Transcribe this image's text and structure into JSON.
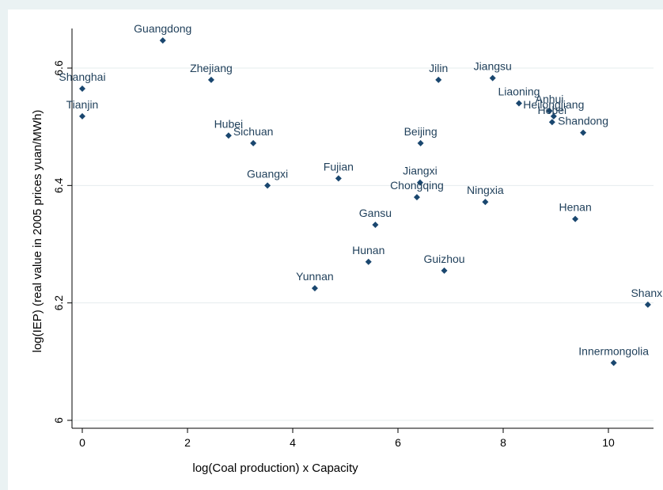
{
  "chart_data": {
    "type": "scatter",
    "title": "",
    "xlabel": "log(Coal production) x Capacity",
    "ylabel": "log(IEP) (real value in 2005 prices yuan/MWh)",
    "xlim": [
      -0.2,
      10.9
    ],
    "ylim": [
      5.98,
      6.67
    ],
    "xticks": [
      0,
      2,
      4,
      6,
      8,
      10
    ],
    "yticks": [
      6,
      6.2,
      6.4,
      6.6
    ],
    "ytick_labels": [
      "6",
      "6.2",
      "6.4",
      "6.6"
    ],
    "grid": true,
    "marker_color": "#1a476f",
    "label_color": "#1f3f5a",
    "points": [
      {
        "label": "Guangdong",
        "x": 1.53,
        "y": 6.647
      },
      {
        "label": "Shanghai",
        "x": 0.0,
        "y": 6.565
      },
      {
        "label": "Tianjin",
        "x": 0.0,
        "y": 6.518
      },
      {
        "label": "Zhejiang",
        "x": 2.45,
        "y": 6.58
      },
      {
        "label": "Hubei",
        "x": 2.78,
        "y": 6.485
      },
      {
        "label": "Sichuan",
        "x": 3.25,
        "y": 6.472
      },
      {
        "label": "Guangxi",
        "x": 3.52,
        "y": 6.4
      },
      {
        "label": "Fujian",
        "x": 4.87,
        "y": 6.412
      },
      {
        "label": "Yunnan",
        "x": 4.42,
        "y": 6.225
      },
      {
        "label": "Hunan",
        "x": 5.44,
        "y": 6.27
      },
      {
        "label": "Gansu",
        "x": 5.57,
        "y": 6.333
      },
      {
        "label": "Jilin",
        "x": 6.77,
        "y": 6.58
      },
      {
        "label": "Beijing",
        "x": 6.43,
        "y": 6.472
      },
      {
        "label": "Jiangxi",
        "x": 6.42,
        "y": 6.405
      },
      {
        "label": "Chongqing",
        "x": 6.36,
        "y": 6.38
      },
      {
        "label": "Guizhou",
        "x": 6.88,
        "y": 6.255
      },
      {
        "label": "Jiangsu",
        "x": 7.8,
        "y": 6.583
      },
      {
        "label": "Liaoning",
        "x": 8.3,
        "y": 6.54
      },
      {
        "label": "Anhui",
        "x": 8.88,
        "y": 6.527
      },
      {
        "label": "Heilongjiang",
        "x": 8.96,
        "y": 6.518
      },
      {
        "label": "Hebei",
        "x": 8.93,
        "y": 6.508
      },
      {
        "label": "Shandong",
        "x": 9.52,
        "y": 6.49
      },
      {
        "label": "Ningxia",
        "x": 7.66,
        "y": 6.372
      },
      {
        "label": "Henan",
        "x": 9.37,
        "y": 6.343
      },
      {
        "label": "Shanxi",
        "x": 10.75,
        "y": 6.197
      },
      {
        "label": "Innermongolia",
        "x": 10.1,
        "y": 6.098
      }
    ]
  }
}
